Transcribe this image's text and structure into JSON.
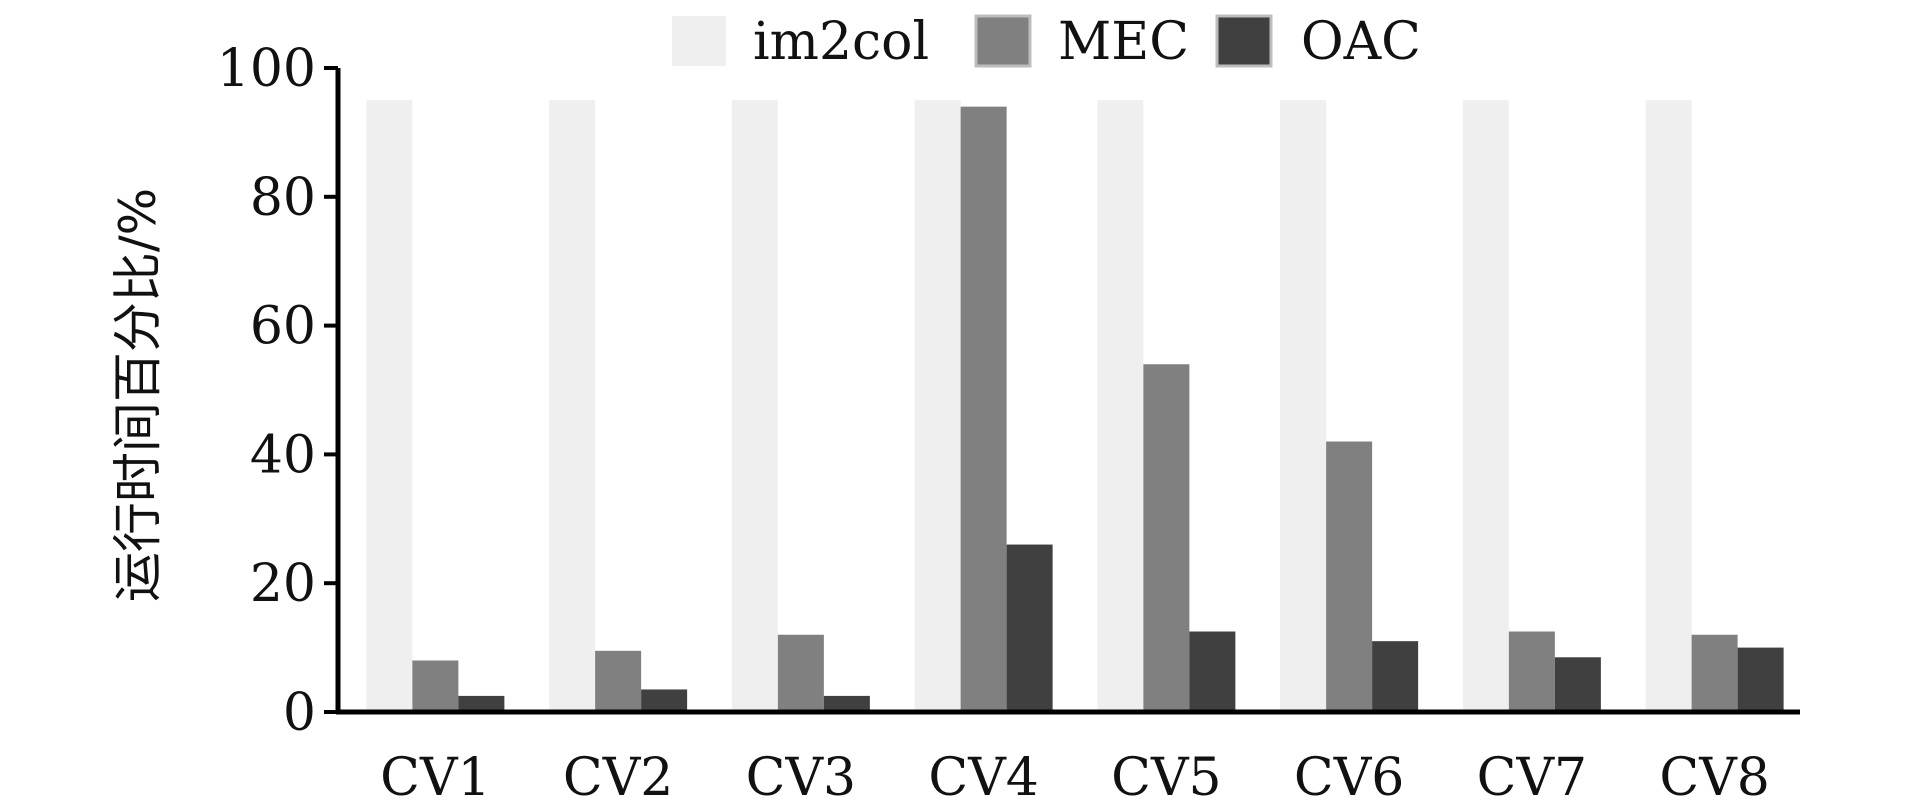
{
  "chart_data": {
    "type": "bar",
    "title": "",
    "xlabel": "",
    "ylabel": "运行时间百分比/%",
    "ylim": [
      0,
      100
    ],
    "yticks": [
      0,
      20,
      40,
      60,
      80,
      100
    ],
    "categories": [
      "CV1",
      "CV2",
      "CV3",
      "CV4",
      "CV5",
      "CV6",
      "CV7",
      "CV8"
    ],
    "series": [
      {
        "name": "im2col",
        "color": "#efefef",
        "values": [
          95,
          95,
          95,
          95,
          95,
          95,
          95,
          95
        ]
      },
      {
        "name": "MEC",
        "color": "#808080",
        "values": [
          8,
          9.5,
          12,
          94,
          54,
          42,
          12.5,
          12
        ]
      },
      {
        "name": "OAC",
        "color": "#404040",
        "values": [
          2.5,
          3.5,
          2.5,
          26,
          12.5,
          11,
          8.5,
          10
        ]
      }
    ],
    "legend_position": "top",
    "grid": false
  }
}
